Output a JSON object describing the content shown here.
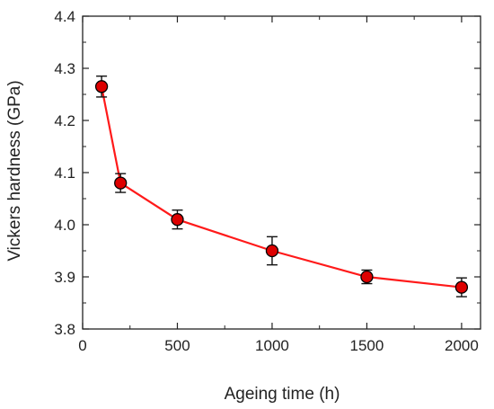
{
  "chart_data": {
    "type": "line",
    "title": "",
    "xlabel": "Ageing time (h)",
    "ylabel": "Vickers hardness (GPa)",
    "xlim": [
      0,
      2100
    ],
    "ylim": [
      3.8,
      4.4
    ],
    "xticks": [
      0,
      500,
      1000,
      1500,
      2000
    ],
    "xtick_labels": [
      "0",
      "500",
      "1000",
      "1500",
      "2000"
    ],
    "yticks": [
      3.8,
      3.9,
      4.0,
      4.1,
      4.2,
      4.3,
      4.4
    ],
    "ytick_labels": [
      "3.8",
      "3.9",
      "4.0",
      "4.1",
      "4.2",
      "4.3",
      "4.4"
    ],
    "grid": false,
    "series": [
      {
        "x": [
          100,
          200,
          500,
          1000,
          1500,
          2000
        ],
        "y": [
          4.265,
          4.08,
          4.01,
          3.95,
          3.9,
          3.88
        ],
        "error": [
          0.02,
          0.018,
          0.018,
          0.027,
          0.013,
          0.018
        ],
        "line_color": "#ff1a1a",
        "marker_color": "#dd0000",
        "marker_edge": "#000000"
      }
    ]
  }
}
